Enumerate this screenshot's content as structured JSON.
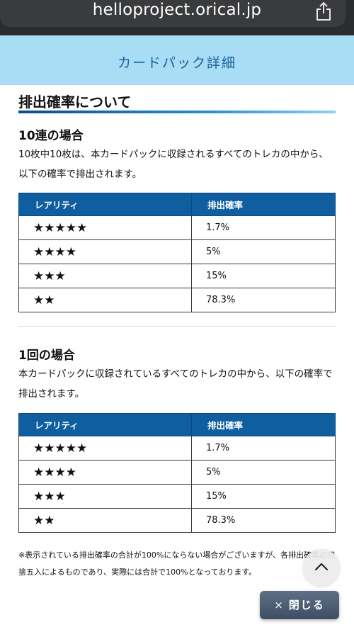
{
  "browser": {
    "url": "helloproject.orical.jp",
    "share_icon": "share-icon"
  },
  "header": {
    "title": "カードパック詳細"
  },
  "section": {
    "title": "排出確率について",
    "ten_pull": {
      "title": "10連の場合",
      "description": "10枚中10枚は、本カードパックに収録されるすべてのトレカの中から、以下の確率で排出されます。",
      "table": {
        "headers": [
          "レアリティ",
          "排出確率"
        ],
        "rows": [
          {
            "rarity": "★★★★★",
            "rate": "1.7%"
          },
          {
            "rarity": "★★★★",
            "rate": "5%"
          },
          {
            "rarity": "★★★",
            "rate": "15%"
          },
          {
            "rarity": "★★",
            "rate": "78.3%"
          }
        ]
      }
    },
    "single_pull": {
      "title": "1回の場合",
      "description": "本カードパックに収録されているすべてのトレカの中から、以下の確率で排出されます。",
      "table": {
        "headers": [
          "レアリティ",
          "排出確率"
        ],
        "rows": [
          {
            "rarity": "★★★★★",
            "rate": "1.7%"
          },
          {
            "rarity": "★★★★",
            "rate": "5%"
          },
          {
            "rarity": "★★★",
            "rate": "15%"
          },
          {
            "rarity": "★★",
            "rate": "78.3%"
          }
        ]
      }
    },
    "note": "※表示されている排出確率の合計が100%にならない場合がございますが、各排出確率の四捨五入によるものであり、実際には合計で100%となっております。"
  },
  "controls": {
    "close_label": "閉じる",
    "close_mark": "×",
    "scroll_top_icon": "chevron-up-icon"
  }
}
